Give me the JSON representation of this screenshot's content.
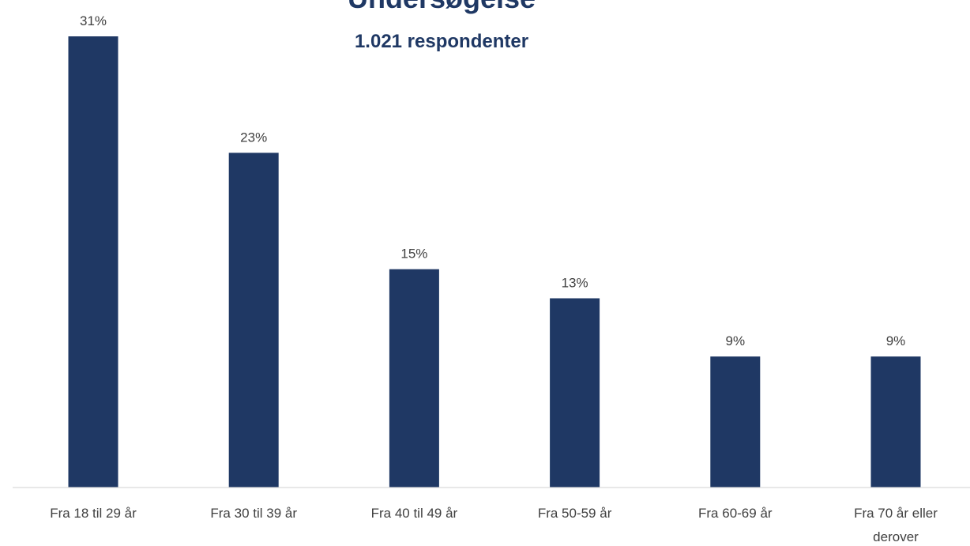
{
  "chart_data": {
    "type": "bar",
    "title": "Undersøgelse",
    "subtitle": "1.021 respondenter",
    "categories": [
      [
        "Fra 18 til 29 år"
      ],
      [
        "Fra 30 til 39 år"
      ],
      [
        "Fra 40 til 49 år"
      ],
      [
        "Fra 50-59 år"
      ],
      [
        "Fra 60-69 år"
      ],
      [
        "Fra 70 år eller",
        "derover"
      ]
    ],
    "values": [
      31,
      23,
      15,
      13,
      9,
      9
    ],
    "value_labels": [
      "31%",
      "23%",
      "15%",
      "13%",
      "9%",
      "9%"
    ],
    "unit": "%",
    "ylim": [
      0,
      31
    ],
    "grid": false,
    "legend": "none",
    "colors": {
      "bar": "#1f3864",
      "title": "#1f3864",
      "label": "#404040",
      "axis": "#d9d9d9"
    }
  }
}
